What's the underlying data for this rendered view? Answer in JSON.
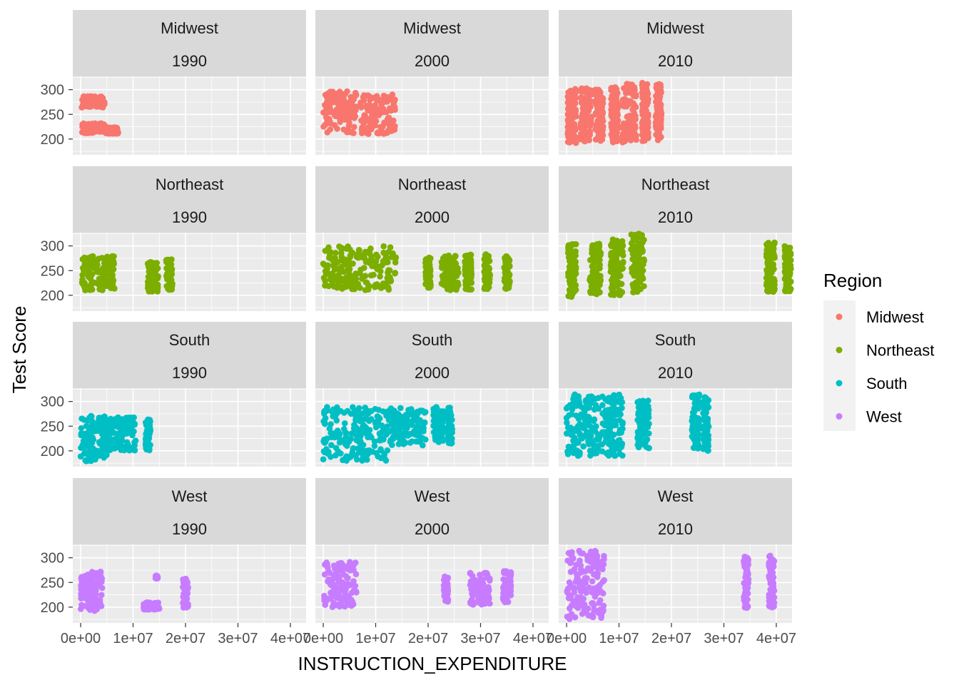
{
  "chart_data": {
    "type": "scatter",
    "facet_rows": [
      "Midwest",
      "Northeast",
      "South",
      "West"
    ],
    "facet_cols": [
      "1990",
      "2000",
      "2010"
    ],
    "xlabel": "INSTRUCTION_EXPENDITURE",
    "ylabel": "Test Score",
    "xlim": [
      -1500000,
      43000000
    ],
    "ylim": [
      168,
      327
    ],
    "x_ticks": [
      0,
      10000000,
      20000000,
      30000000,
      40000000
    ],
    "x_tick_labels": [
      "0e+00",
      "1e+07",
      "2e+07",
      "3e+07",
      "4e+07"
    ],
    "y_ticks": [
      200,
      250,
      300
    ],
    "y_tick_labels": [
      "200",
      "250",
      "300"
    ],
    "grid": true,
    "legend": {
      "title": "Region",
      "position": "right",
      "entries": [
        {
          "name": "Midwest",
          "color": "#F8766D"
        },
        {
          "name": "Northeast",
          "color": "#7CAE00"
        },
        {
          "name": "South",
          "color": "#00BFC4"
        },
        {
          "name": "West",
          "color": "#C77CFF"
        }
      ]
    },
    "series": [
      {
        "region": "Midwest",
        "year": "1990",
        "color": "#F8766D",
        "clusters": [
          {
            "x": [
              200000,
              4600000
            ],
            "y": [
              262,
              287
            ]
          },
          {
            "x": [
              200000,
              4800000
            ],
            "y": [
              212,
              232
            ]
          },
          {
            "x": [
              4800000,
              7200000
            ],
            "y": [
              211,
              224
            ]
          }
        ]
      },
      {
        "region": "Midwest",
        "year": "2000",
        "color": "#F8766D",
        "clusters": [
          {
            "x": [
              0,
              6300000
            ],
            "y": [
              210,
              297
            ]
          },
          {
            "x": [
              7000000,
              13700000
            ],
            "y": [
              210,
              290
            ]
          }
        ]
      },
      {
        "region": "Midwest",
        "year": "2010",
        "color": "#F8766D",
        "clusters": [
          {
            "x": [
              200000,
              1800000
            ],
            "y": [
              192,
              302
            ]
          },
          {
            "x": [
              2600000,
              4800000
            ],
            "y": [
              195,
              303
            ]
          },
          {
            "x": [
              5500000,
              7000000
            ],
            "y": [
              196,
              300
            ]
          },
          {
            "x": [
              8500000,
              9900000
            ],
            "y": [
              193,
              305
            ]
          },
          {
            "x": [
              10600000,
              13300000
            ],
            "y": [
              193,
              312
            ]
          },
          {
            "x": [
              14400000,
              15600000
            ],
            "y": [
              196,
              314
            ]
          },
          {
            "x": [
              17000000,
              18100000
            ],
            "y": [
              196,
              312
            ]
          }
        ]
      },
      {
        "region": "Northeast",
        "year": "1990",
        "color": "#7CAE00",
        "clusters": [
          {
            "x": [
              200000,
              6500000
            ],
            "y": [
              210,
              280
            ]
          },
          {
            "x": [
              12800000,
              14800000
            ],
            "y": [
              207,
              268
            ]
          },
          {
            "x": [
              16300000,
              17500000
            ],
            "y": [
              210,
              273
            ]
          }
        ]
      },
      {
        "region": "Northeast",
        "year": "2000",
        "color": "#7CAE00",
        "clusters": [
          {
            "x": [
              0,
              14000000
            ],
            "y": [
              210,
              300
            ]
          },
          {
            "x": [
              19500000,
              20500000
            ],
            "y": [
              215,
              277
            ]
          },
          {
            "x": [
              22500000,
              25800000
            ],
            "y": [
              210,
              282
            ]
          },
          {
            "x": [
              27000000,
              28300000
            ],
            "y": [
              210,
              283
            ]
          },
          {
            "x": [
              30700000,
              31800000
            ],
            "y": [
              212,
              283
            ]
          },
          {
            "x": [
              34500000,
              35600000
            ],
            "y": [
              212,
              283
            ]
          }
        ]
      },
      {
        "region": "Northeast",
        "year": "2010",
        "color": "#7CAE00",
        "clusters": [
          {
            "x": [
              300000,
              1800000
            ],
            "y": [
              195,
              305
            ]
          },
          {
            "x": [
              4400000,
              6500000
            ],
            "y": [
              200,
              305
            ]
          },
          {
            "x": [
              8400000,
              10800000
            ],
            "y": [
              200,
              313
            ]
          },
          {
            "x": [
              12300000,
              14800000
            ],
            "y": [
              205,
              325
            ]
          },
          {
            "x": [
              38100000,
              39700000
            ],
            "y": [
              207,
              307
            ]
          },
          {
            "x": [
              41600000,
              42800000
            ],
            "y": [
              207,
              302
            ]
          }
        ]
      },
      {
        "region": "South",
        "year": "1990",
        "color": "#00BFC4",
        "clusters": [
          {
            "x": [
              0,
              5000000
            ],
            "y": [
              178,
              272
            ]
          },
          {
            "x": [
              4000000,
              10500000
            ],
            "y": [
              200,
              268
            ]
          },
          {
            "x": [
              12400000,
              13300000
            ],
            "y": [
              200,
              265
            ]
          }
        ]
      },
      {
        "region": "South",
        "year": "2000",
        "color": "#00BFC4",
        "clusters": [
          {
            "x": [
              0,
              12500000
            ],
            "y": [
              180,
              290
            ]
          },
          {
            "x": [
              12500000,
              19500000
            ],
            "y": [
              210,
              290
            ]
          },
          {
            "x": [
              21000000,
              23000000
            ],
            "y": [
              215,
              290
            ]
          },
          {
            "x": [
              23800000,
              24600000
            ],
            "y": [
              215,
              288
            ]
          }
        ]
      },
      {
        "region": "South",
        "year": "2010",
        "color": "#00BFC4",
        "clusters": [
          {
            "x": [
              0,
              6300000
            ],
            "y": [
              190,
              315
            ]
          },
          {
            "x": [
              6700000,
              10700000
            ],
            "y": [
              190,
              315
            ]
          },
          {
            "x": [
              13500000,
              15800000
            ],
            "y": [
              205,
              305
            ]
          },
          {
            "x": [
              23900000,
              25300000
            ],
            "y": [
              205,
              315
            ]
          },
          {
            "x": [
              26000000,
              27100000
            ],
            "y": [
              200,
              310
            ]
          }
        ]
      },
      {
        "region": "West",
        "year": "1990",
        "color": "#C77CFF",
        "clusters": [
          {
            "x": [
              0,
              4200000
            ],
            "y": [
              190,
              275
            ]
          },
          {
            "x": [
              12000000,
              15000000
            ],
            "y": [
              195,
              210
            ]
          },
          {
            "x": [
              14300000,
              14700000
            ],
            "y": [
              258,
              264
            ]
          },
          {
            "x": [
              19500000,
              20500000
            ],
            "y": [
              198,
              258
            ]
          }
        ]
      },
      {
        "region": "West",
        "year": "2000",
        "color": "#C77CFF",
        "clusters": [
          {
            "x": [
              0,
              6400000
            ],
            "y": [
              200,
              292
            ]
          },
          {
            "x": [
              23000000,
              23800000
            ],
            "y": [
              210,
              262
            ]
          },
          {
            "x": [
              28000000,
              31800000
            ],
            "y": [
              205,
              270
            ]
          },
          {
            "x": [
              34300000,
              35800000
            ],
            "y": [
              210,
              273
            ]
          }
        ]
      },
      {
        "region": "West",
        "year": "2010",
        "color": "#C77CFF",
        "clusters": [
          {
            "x": [
              0,
              7200000
            ],
            "y": [
              175,
              315
            ]
          },
          {
            "x": [
              33800000,
              34700000
            ],
            "y": [
              198,
              305
            ]
          },
          {
            "x": [
              38600000,
              39600000
            ],
            "y": [
              198,
              305
            ]
          }
        ]
      }
    ]
  }
}
